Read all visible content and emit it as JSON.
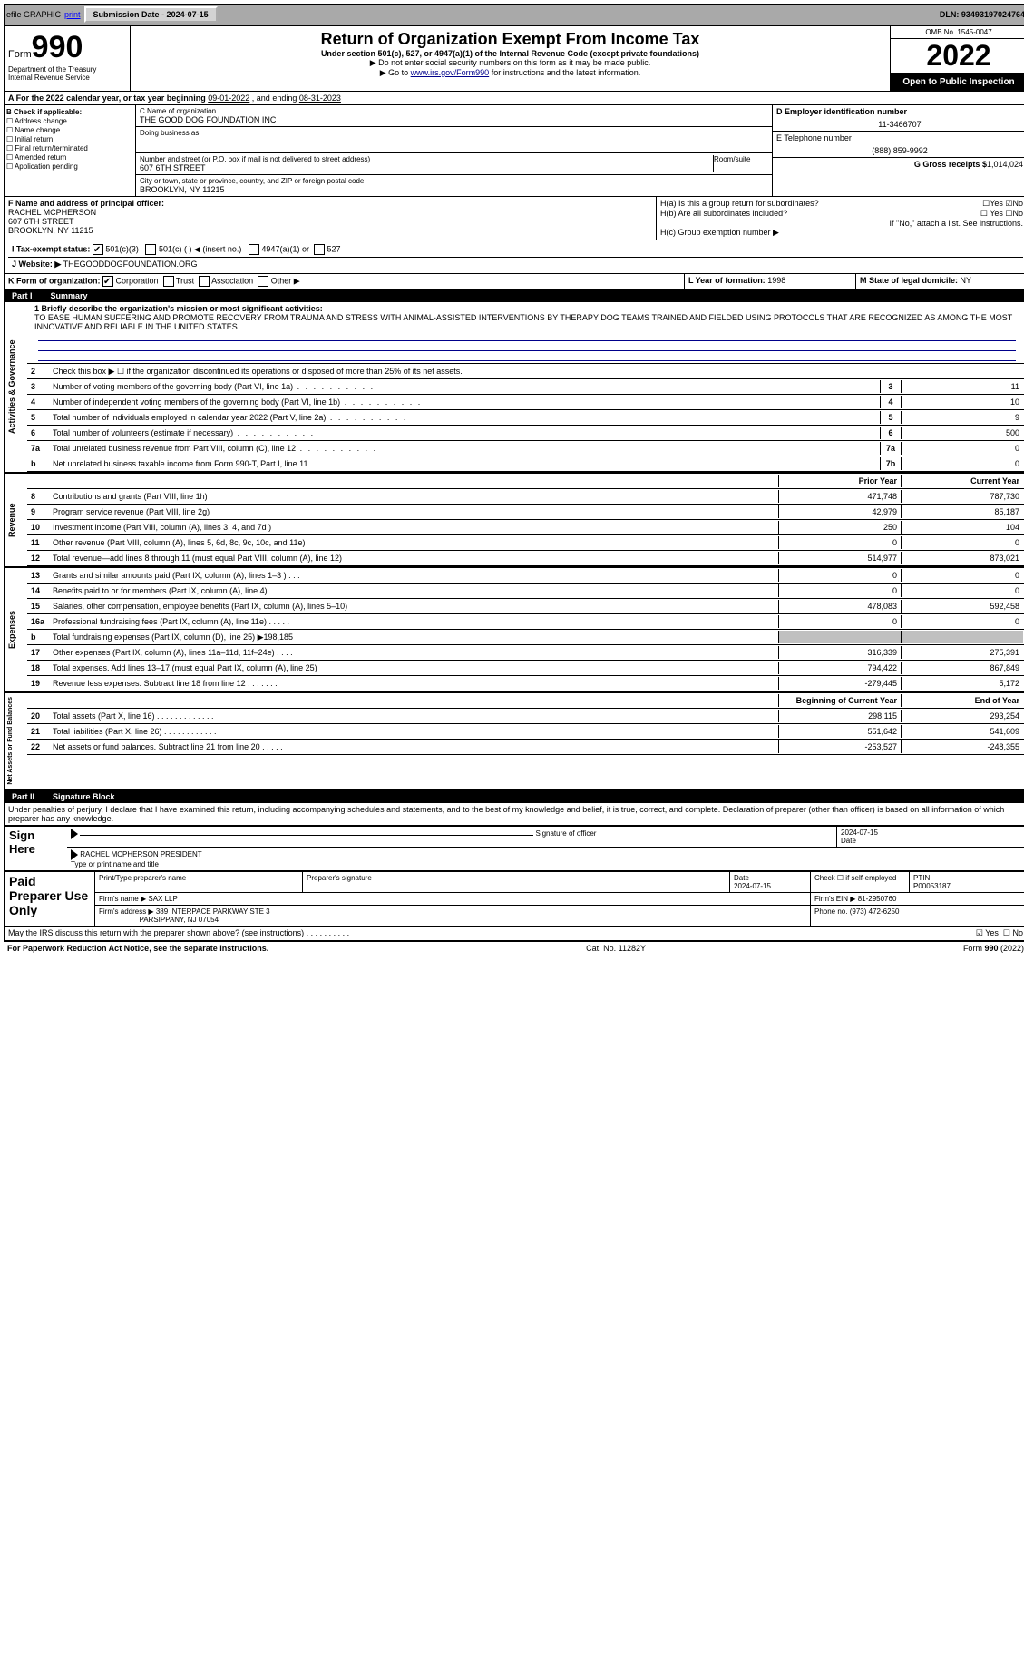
{
  "top": {
    "efile": "efile GRAPHIC",
    "print": "print",
    "sub_label": "Submission Date - 2024-07-15",
    "dln": "DLN: 93493197024764"
  },
  "header": {
    "form_word": "Form",
    "form_num": "990",
    "dept1": "Department of the Treasury",
    "dept2": "Internal Revenue Service",
    "title": "Return of Organization Exempt From Income Tax",
    "sub": "Under section 501(c), 527, or 4947(a)(1) of the Internal Revenue Code (except private foundations)",
    "note1": "▶ Do not enter social security numbers on this form as it may be made public.",
    "note2_pre": "▶ Go to ",
    "note2_link": "www.irs.gov/Form990",
    "note2_post": " for instructions and the latest information.",
    "omb": "OMB No. 1545-0047",
    "year": "2022",
    "open": "Open to Public Inspection"
  },
  "a": {
    "text_pre": "A For the 2022 calendar year, or tax year beginning ",
    "begin": "09-01-2022",
    "mid": " , and ending ",
    "end": "08-31-2023"
  },
  "b": {
    "title": "B Check if applicable:",
    "opts": [
      "☐ Address change",
      "☐ Name change",
      "☐ Initial return",
      "☐ Final return/terminated",
      "☐ Amended return",
      "☐ Application pending"
    ]
  },
  "c": {
    "name_label": "C Name of organization",
    "name": "THE GOOD DOG FOUNDATION INC",
    "dba_label": "Doing business as",
    "addr_label": "Number and street (or P.O. box if mail is not delivered to street address)",
    "room_label": "Room/suite",
    "addr": "607 6TH STREET",
    "city_label": "City or town, state or province, country, and ZIP or foreign postal code",
    "city": "BROOKLYN, NY  11215"
  },
  "d": {
    "label": "D Employer identification number",
    "val": "11-3466707"
  },
  "e": {
    "label": "E Telephone number",
    "val": "(888) 859-9992"
  },
  "g": {
    "label": "G Gross receipts $",
    "val": "1,014,024"
  },
  "f": {
    "label": "F Name and address of principal officer:",
    "name": "RACHEL MCPHERSON",
    "addr1": "607 6TH STREET",
    "addr2": "BROOKLYN, NY  11215"
  },
  "h": {
    "a": "H(a)  Is this a group return for subordinates?",
    "a_yes": "☐Yes",
    "a_no": "☑No",
    "b": "H(b)  Are all subordinates included?",
    "b_yes": "☐ Yes",
    "b_no": "☐No",
    "b_note": "If \"No,\" attach a list. See instructions.",
    "c": "H(c)  Group exemption number ▶"
  },
  "i": {
    "label": "I  Tax-exempt status:",
    "o1": "501(c)(3)",
    "o2": "501(c) (  ) ◀ (insert no.)",
    "o3": "4947(a)(1) or",
    "o4": "527"
  },
  "j": {
    "label": "J  Website: ▶",
    "val": "THEGOODDOGFOUNDATION.ORG"
  },
  "k": {
    "label": "K Form of organization:",
    "corp": "Corporation",
    "trust": "Trust",
    "assoc": "Association",
    "other": "Other ▶"
  },
  "l": {
    "label": "L Year of formation:",
    "val": "1998"
  },
  "m": {
    "label": "M State of legal domicile:",
    "val": "NY"
  },
  "part1": {
    "num": "Part I",
    "title": "Summary"
  },
  "mission": {
    "label": "1  Briefly describe the organization's mission or most significant activities:",
    "text": "TO EASE HUMAN SUFFERING AND PROMOTE RECOVERY FROM TRAUMA AND STRESS WITH ANIMAL-ASSISTED INTERVENTIONS BY THERAPY DOG TEAMS TRAINED AND FIELDED USING PROTOCOLS THAT ARE RECOGNIZED AS AMONG THE MOST INNOVATIVE AND RELIABLE IN THE UNITED STATES."
  },
  "gov": {
    "l2": "Check this box ▶ ☐  if the organization discontinued its operations or disposed of more than 25% of its net assets.",
    "lines": [
      {
        "n": "3",
        "d": "Number of voting members of the governing body (Part VI, line 1a)",
        "box": "3",
        "v": "11"
      },
      {
        "n": "4",
        "d": "Number of independent voting members of the governing body (Part VI, line 1b)",
        "box": "4",
        "v": "10"
      },
      {
        "n": "5",
        "d": "Total number of individuals employed in calendar year 2022 (Part V, line 2a)",
        "box": "5",
        "v": "9"
      },
      {
        "n": "6",
        "d": "Total number of volunteers (estimate if necessary)",
        "box": "6",
        "v": "500"
      },
      {
        "n": "7a",
        "d": "Total unrelated business revenue from Part VIII, column (C), line 12",
        "box": "7a",
        "v": "0"
      },
      {
        "n": "b",
        "d": "Net unrelated business taxable income from Form 990-T, Part I, line 11",
        "box": "7b",
        "v": "0"
      }
    ]
  },
  "cols": {
    "prior": "Prior Year",
    "current": "Current Year",
    "boy": "Beginning of Current Year",
    "eoy": "End of Year"
  },
  "rev": [
    {
      "n": "8",
      "d": "Contributions and grants (Part VIII, line 1h)",
      "p": "471,748",
      "c": "787,730"
    },
    {
      "n": "9",
      "d": "Program service revenue (Part VIII, line 2g)",
      "p": "42,979",
      "c": "85,187"
    },
    {
      "n": "10",
      "d": "Investment income (Part VIII, column (A), lines 3, 4, and 7d )",
      "p": "250",
      "c": "104"
    },
    {
      "n": "11",
      "d": "Other revenue (Part VIII, column (A), lines 5, 6d, 8c, 9c, 10c, and 11e)",
      "p": "0",
      "c": "0"
    },
    {
      "n": "12",
      "d": "Total revenue—add lines 8 through 11 (must equal Part VIII, column (A), line 12)",
      "p": "514,977",
      "c": "873,021"
    }
  ],
  "exp": [
    {
      "n": "13",
      "d": "Grants and similar amounts paid (Part IX, column (A), lines 1–3 )   .    .    .",
      "p": "0",
      "c": "0"
    },
    {
      "n": "14",
      "d": "Benefits paid to or for members (Part IX, column (A), line 4)   .    .    .    .    .",
      "p": "0",
      "c": "0"
    },
    {
      "n": "15",
      "d": "Salaries, other compensation, employee benefits (Part IX, column (A), lines 5–10)",
      "p": "478,083",
      "c": "592,458"
    },
    {
      "n": "16a",
      "d": "Professional fundraising fees (Part IX, column (A), line 11e)   .    .    .    .    .",
      "p": "0",
      "c": "0"
    },
    {
      "n": "b",
      "d": "Total fundraising expenses (Part IX, column (D), line 25) ▶198,185",
      "p": "",
      "c": "",
      "grey": true
    },
    {
      "n": "17",
      "d": "Other expenses (Part IX, column (A), lines 11a–11d, 11f–24e)   .    .    .    .",
      "p": "316,339",
      "c": "275,391"
    },
    {
      "n": "18",
      "d": "Total expenses. Add lines 13–17 (must equal Part IX, column (A), line 25)",
      "p": "794,422",
      "c": "867,849"
    },
    {
      "n": "19",
      "d": "Revenue less expenses. Subtract line 18 from line 12   .    .    .    .    .    .    .",
      "p": "-279,445",
      "c": "5,172"
    }
  ],
  "net": [
    {
      "n": "20",
      "d": "Total assets (Part X, line 16)   .    .    .    .    .    .    .    .    .    .    .    .    .",
      "p": "298,115",
      "c": "293,254"
    },
    {
      "n": "21",
      "d": "Total liabilities (Part X, line 26)   .    .    .    .    .    .    .    .    .    .    .    .",
      "p": "551,642",
      "c": "541,609"
    },
    {
      "n": "22",
      "d": "Net assets or fund balances. Subtract line 21 from line 20   .    .    .    .    .",
      "p": "-253,527",
      "c": "-248,355"
    }
  ],
  "vlabels": {
    "gov": "Activities & Governance",
    "rev": "Revenue",
    "exp": "Expenses",
    "net": "Net Assets or Fund Balances"
  },
  "part2": {
    "num": "Part II",
    "title": "Signature Block"
  },
  "sig": {
    "decl": "Under penalties of perjury, I declare that I have examined this return, including accompanying schedules and statements, and to the best of my knowledge and belief, it is true, correct, and complete. Declaration of preparer (other than officer) is based on all information of which preparer has any knowledge.",
    "sign_here": "Sign Here",
    "sig_officer": "Signature of officer",
    "date": "Date",
    "date_val": "2024-07-15",
    "name_title": "RACHEL MCPHERSON  PRESIDENT",
    "type_name": "Type or print name and title",
    "paid": "Paid Preparer Use Only",
    "prep_name_lbl": "Print/Type preparer's name",
    "prep_sig_lbl": "Preparer's signature",
    "prep_date_lbl": "Date",
    "prep_date": "2024-07-15",
    "check_lbl": "Check ☐ if self-employed",
    "ptin_lbl": "PTIN",
    "ptin": "P00053187",
    "firm_name_lbl": "Firm's name    ▶",
    "firm_name": "SAX LLP",
    "firm_ein_lbl": "Firm's EIN ▶",
    "firm_ein": "81-2950760",
    "firm_addr_lbl": "Firm's address ▶",
    "firm_addr1": "389 INTERPACE PARKWAY STE 3",
    "firm_addr2": "PARSIPPANY, NJ  07054",
    "phone_lbl": "Phone no.",
    "phone": "(973) 472-6250",
    "discuss": "May the IRS discuss this return with the preparer shown above? (see instructions)   .    .    .    .    .    .    .    .    .    .",
    "discuss_yes": "☑ Yes",
    "discuss_no": "☐ No"
  },
  "footer": {
    "left": "For Paperwork Reduction Act Notice, see the separate instructions.",
    "mid": "Cat. No. 11282Y",
    "right": "Form 990 (2022)"
  }
}
